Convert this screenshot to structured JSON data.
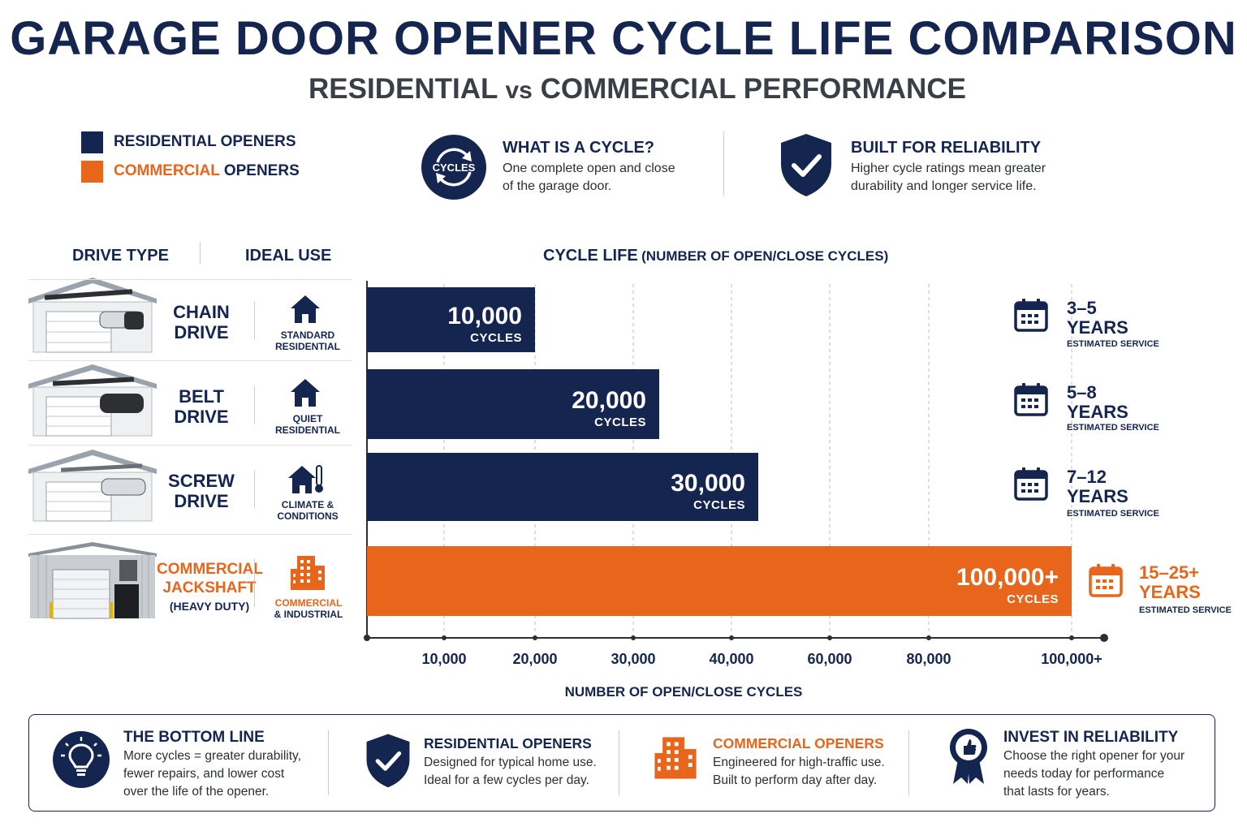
{
  "header": {
    "title": "GARAGE DOOR OPENER CYCLE LIFE COMPARISON",
    "subtitle_a": "RESIDENTIAL",
    "subtitle_vs": "vs",
    "subtitle_b": "COMMERCIAL PERFORMANCE"
  },
  "legend": {
    "residential": "RESIDENTIAL OPENERS",
    "commercial_a": "COMMERCIAL",
    "commercial_b": "OPENERS",
    "residential_color": "#14254f",
    "commercial_color": "#e8651c"
  },
  "info": {
    "cycle_icon_text": "CYCLES",
    "cycle_title": "WHAT IS A CYCLE?",
    "cycle_text_1": "One complete open and close",
    "cycle_text_2": "of the garage door.",
    "rel_title": "BUILT FOR RELIABILITY",
    "rel_text_1": "Higher cycle ratings mean greater",
    "rel_text_2": "durability and longer service life."
  },
  "columns": {
    "drive_type": "DRIVE TYPE",
    "ideal_use": "IDEAL USE",
    "chart_head_a": "CYCLE LIFE",
    "chart_head_b": "(NUMBER OF OPEN/CLOSE CYCLES)"
  },
  "rows": [
    {
      "name_1": "CHAIN",
      "name_2": "DRIVE",
      "use_1": "STANDARD",
      "use_2": "RESIDENTIAL",
      "value_label": "10,000",
      "unit": "CYCLES",
      "years_1": "3–5",
      "years_2": "YEARS",
      "est": "ESTIMATED SERVICE"
    },
    {
      "name_1": "BELT",
      "name_2": "DRIVE",
      "use_1": "QUIET",
      "use_2": "RESIDENTIAL",
      "value_label": "20,000",
      "unit": "CYCLES",
      "years_1": "5–8",
      "years_2": "YEARS",
      "est": "ESTIMATED SERVICE"
    },
    {
      "name_1": "SCREW",
      "name_2": "DRIVE",
      "use_1": "CLIMATE &",
      "use_2": "CONDITIONS",
      "value_label": "30,000",
      "unit": "CYCLES",
      "years_1": "7–12",
      "years_2": "YEARS",
      "est": "ESTIMATED SERVICE"
    },
    {
      "name_1": "COMMERCIAL",
      "name_2": "JACKSHAFT",
      "name_3": "(HEAVY DUTY)",
      "use_1": "COMMERCIAL",
      "use_2": "& INDUSTRIAL",
      "value_label": "100,000+",
      "unit": "CYCLES",
      "years_1": "15–25+",
      "years_2": "YEARS",
      "est": "ESTIMATED SERVICE"
    }
  ],
  "chart_data": {
    "type": "bar",
    "orientation": "horizontal",
    "categories": [
      "CHAIN DRIVE",
      "BELT DRIVE",
      "SCREW DRIVE",
      "COMMERCIAL JACKSHAFT (HEAVY DUTY)"
    ],
    "values": [
      10000,
      20000,
      30000,
      100000
    ],
    "x_tick_labels": [
      "10,000",
      "20,000",
      "30,000",
      "40,000",
      "60,000",
      "80,000",
      "100,000+"
    ],
    "xlabel": "NUMBER OF OPEN/CLOSE CYCLES",
    "title": "CYCLE LIFE (NUMBER OF OPEN/CLOSE CYCLES)",
    "grid": "vertical dashed",
    "colors": [
      "#14254f",
      "#14254f",
      "#14254f",
      "#e8651c"
    ]
  },
  "bottom": {
    "b1_title": "THE BOTTOM LINE",
    "b1_l1": "More cycles = greater durability,",
    "b1_l2": "fewer repairs, and lower cost",
    "b1_l3": "over the life of the opener.",
    "b2_title": "RESIDENTIAL OPENERS",
    "b2_l1": "Designed for typical home use.",
    "b2_l2": "Ideal for a few cycles per day.",
    "b3_title": "COMMERCIAL OPENERS",
    "b3_l1": "Engineered for high-traffic use.",
    "b3_l2": "Built to perform day after day.",
    "b4_title": "INVEST IN RELIABILITY",
    "b4_l1": "Choose the right opener for your",
    "b4_l2": "needs today for performance",
    "b4_l3": "that lasts for years."
  }
}
